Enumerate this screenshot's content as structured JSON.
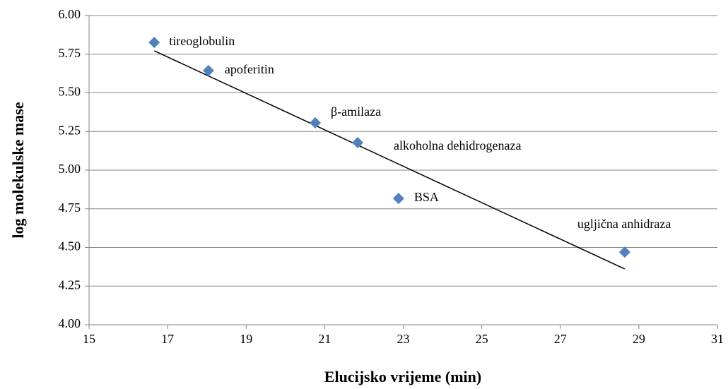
{
  "chart_data": {
    "type": "scatter",
    "x_label": "Elucijsko vrijeme (min)",
    "y_label": "log molekulske mase",
    "x": [
      16.66,
      18.04,
      20.76,
      21.84,
      22.88,
      28.64
    ],
    "values": [
      5.826,
      5.644,
      5.306,
      5.178,
      4.817,
      4.47
    ],
    "point_labels": [
      "tireoglobulin",
      "apoferitin",
      "β-amilaza",
      "alkoholna dehidrogenaza",
      "BSA",
      "ugljična anhidraza"
    ],
    "color": "#4f81bd",
    "trendline": {
      "x": [
        16.66,
        28.64
      ],
      "y": [
        5.772,
        4.361
      ],
      "color": "#000000"
    },
    "xlim": [
      15,
      31
    ],
    "xticks": [
      15,
      17,
      19,
      21,
      23,
      25,
      27,
      29,
      31
    ],
    "ylim": [
      4,
      6
    ],
    "yticks": [
      {
        "value": 4,
        "label": "4.00"
      },
      {
        "value": 4.25,
        "label": "4.25"
      },
      {
        "value": 4.5,
        "label": "4.50"
      },
      {
        "value": 4.75,
        "label": "4.75"
      },
      {
        "value": 5,
        "label": "5.00"
      },
      {
        "value": 5.25,
        "label": "5.25"
      },
      {
        "value": 5.5,
        "label": "5.50"
      },
      {
        "value": 5.75,
        "label": "5.75"
      },
      {
        "value": 6,
        "label": "6.00"
      }
    ],
    "grid": true
  }
}
